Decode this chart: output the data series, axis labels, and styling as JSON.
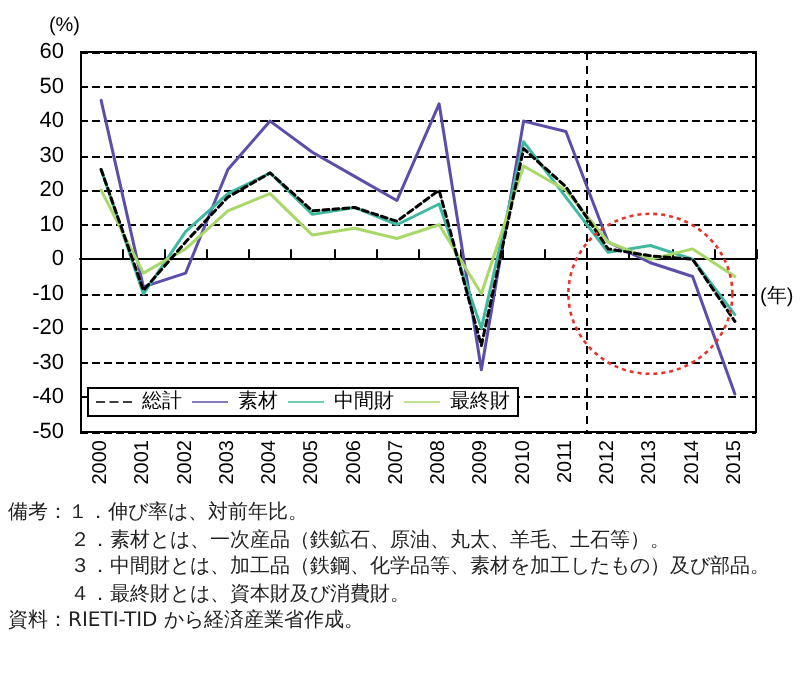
{
  "chart_data": {
    "type": "line",
    "ylabel": "(%)",
    "xlabel": "(年)",
    "categories": [
      "2000",
      "2001",
      "2002",
      "2003",
      "2004",
      "2005",
      "2006",
      "2007",
      "2008",
      "2009",
      "2010",
      "2011",
      "2012",
      "2013",
      "2014",
      "2015"
    ],
    "series": [
      {
        "name": "総計",
        "color": "#000000",
        "line_style": "dashed",
        "values": [
          26,
          -9,
          5,
          18,
          25,
          14,
          15,
          11,
          20,
          -25,
          32,
          21,
          3,
          1,
          0,
          -18
        ]
      },
      {
        "name": "素材",
        "color": "#5b4ea8",
        "values": [
          46,
          -8,
          -4,
          26,
          40,
          31,
          24,
          17,
          45,
          -32,
          40,
          37,
          5,
          -1,
          -5,
          -39
        ]
      },
      {
        "name": "中間財",
        "color": "#3fb8a0",
        "values": [
          26,
          -10,
          8,
          19,
          25,
          13,
          15,
          10,
          16,
          -20,
          34,
          18,
          2,
          4,
          0,
          -16
        ]
      },
      {
        "name": "最終財",
        "color": "#a8d868",
        "values": [
          20,
          -4,
          3,
          14,
          19,
          7,
          9,
          6,
          10,
          -10,
          27,
          20,
          5,
          0,
          3,
          -5
        ]
      }
    ],
    "ylim": [
      -50,
      60
    ],
    "yticks": [
      -50,
      -40,
      -30,
      -20,
      -10,
      0,
      10,
      20,
      30,
      40,
      50,
      60
    ],
    "grid": "y",
    "legend": "bottom left",
    "marker": "none",
    "line_style": "solid",
    "annotations": [
      "備考：１．伸び率は、対前年比。",
      "２．素材とは、一次産品（鉄鉱石、原油、丸太、羊毛、土石等）。",
      "３．中間財とは、加工品（鉄鋼、化学品等、素材を加工したもの）及び部品。",
      "４．最終財とは、資本財及び消費財。",
      "資料：RIETI-TID から経済産業省作成。"
    ]
  }
}
